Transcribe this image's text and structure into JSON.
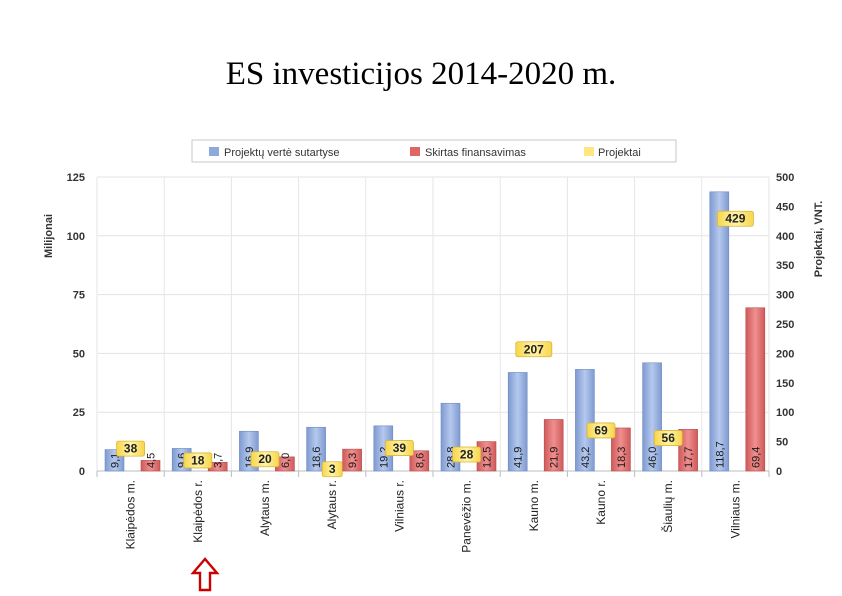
{
  "title": "ES  investicijos 2014-2020 m.",
  "chart_data": {
    "type": "bar",
    "categories": [
      "Klaipėdos m.",
      "Klaipėdos r.",
      "Alytaus m.",
      "Alytaus r.",
      "Vilniaus r.",
      "Panevėžio m.",
      "Kauno m.",
      "Kauno r.",
      "Šiaulių m.",
      "Vilniaus m."
    ],
    "series": [
      {
        "name": "Projektų vertė sutartyse",
        "axis": "left",
        "values": [
          9.1,
          9.6,
          16.9,
          18.6,
          19.2,
          28.8,
          41.9,
          43.2,
          46.0,
          118.7
        ],
        "labels": [
          "9,1",
          "9,6",
          "16,9",
          "18,6",
          "19,2",
          "28,8",
          "41,9",
          "43,2",
          "46,0",
          "118,7"
        ],
        "color": "#8eaadb"
      },
      {
        "name": "Skirtas finansavimas",
        "axis": "left",
        "values": [
          4.5,
          3.7,
          6.0,
          9.3,
          8.6,
          12.5,
          21.9,
          18.3,
          17.7,
          69.4
        ],
        "labels": [
          "4,5",
          "3,7",
          "6,0",
          "9,3",
          "8,6",
          "12,5",
          "21,9",
          "18,3",
          "17,7",
          "69,4"
        ],
        "color": "#e06666"
      },
      {
        "name": "Projektai",
        "axis": "right",
        "values": [
          38,
          18,
          20,
          3,
          39,
          28,
          207,
          69,
          56,
          429
        ],
        "labels": [
          "38",
          "18",
          "20",
          "3",
          "39",
          "28",
          "207",
          "69",
          "56",
          "429"
        ],
        "color": "#ffe680"
      }
    ],
    "ylabel": "Milijonai",
    "y2label": "Projektai, VNT.",
    "ylim": [
      0,
      125
    ],
    "y2lim": [
      0,
      500
    ],
    "yticks": [
      "0",
      "25",
      "50",
      "75",
      "100",
      "125"
    ],
    "y2ticks": [
      "0",
      "50",
      "100",
      "150",
      "200",
      "250",
      "300",
      "350",
      "400",
      "450",
      "500"
    ],
    "grid": true,
    "legend": "top",
    "annotation": "red-arrow-up",
    "annotation_color": "#cc0000"
  }
}
